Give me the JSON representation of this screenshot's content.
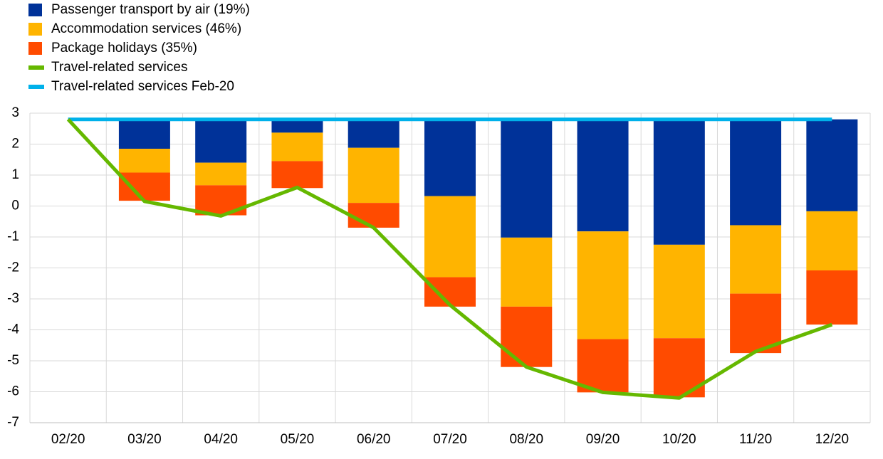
{
  "chart_data": {
    "type": "bar",
    "categories": [
      "02/20",
      "03/20",
      "04/20",
      "05/20",
      "06/20",
      "07/20",
      "08/20",
      "09/20",
      "10/20",
      "11/20",
      "12/20"
    ],
    "series": [
      {
        "name": "Passenger transport by air (19%)",
        "type": "bar",
        "color": "#003299",
        "values": [
          null,
          -0.95,
          -1.4,
          -0.43,
          -0.92,
          -2.48,
          -3.82,
          -3.62,
          -4.05,
          -3.42,
          -2.97
        ]
      },
      {
        "name": "Accommodation services (46%)",
        "type": "bar",
        "color": "#ffb400",
        "values": [
          null,
          -0.77,
          -0.73,
          -0.92,
          -1.78,
          -2.62,
          -2.23,
          -3.48,
          -3.02,
          -2.21,
          -1.91
        ]
      },
      {
        "name": "Package holidays (35%)",
        "type": "bar",
        "color": "#ff4b00",
        "values": [
          null,
          -0.91,
          -0.97,
          -0.87,
          -0.8,
          -0.95,
          -1.95,
          -1.72,
          -1.91,
          -1.92,
          -1.75
        ]
      },
      {
        "name": "Travel-related services",
        "type": "line",
        "color": "#65b800",
        "values": [
          2.8,
          0.15,
          -0.32,
          0.6,
          -0.7,
          -3.2,
          -5.2,
          -6.02,
          -6.2,
          -4.7,
          -3.83
        ]
      },
      {
        "name": "Travel-related services Feb-20",
        "type": "line",
        "color": "#00b1ea",
        "values": [
          2.8,
          2.8,
          2.8,
          2.8,
          2.8,
          2.8,
          2.8,
          2.8,
          2.8,
          2.8,
          2.8
        ]
      }
    ],
    "ylim": [
      -7,
      3
    ],
    "yticks": [
      -7,
      -6,
      -5,
      -4,
      -3,
      -2,
      -1,
      0,
      1,
      2,
      3
    ],
    "grid": true,
    "legend": "top-left"
  }
}
